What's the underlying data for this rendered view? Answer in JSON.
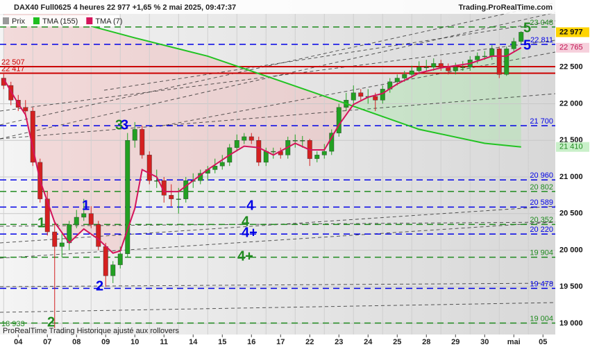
{
  "header": {
    "title": "DAX40 Full0625 4 heures 22 977 +1,65 % 2 mai 2025, 09:47:37",
    "site": "Trading.ProRealTime.com",
    "footer": "ProRealTime Trading Historique ajusté aux rollovers"
  },
  "chart_data": {
    "type": "candlestick",
    "legend": [
      {
        "name": "Prix",
        "color": "#9a9a9a"
      },
      {
        "name": "TMA (155)",
        "color": "#1fbf1f"
      },
      {
        "name": "TMA (7)",
        "color": "#d4145a"
      }
    ],
    "up_color": "#22a022",
    "down_color": "#d42020",
    "candles": [
      [
        22350,
        22420,
        22200,
        22250
      ],
      [
        22250,
        22300,
        21980,
        22050
      ],
      [
        22050,
        22120,
        21900,
        21950
      ],
      [
        21950,
        22050,
        21850,
        21900
      ],
      [
        21900,
        21950,
        21150,
        21200
      ],
      [
        21200,
        21250,
        20650,
        20700
      ],
      [
        20700,
        20800,
        20200,
        20250
      ],
      [
        20250,
        20400,
        18933,
        20050
      ],
      [
        20050,
        20250,
        19900,
        20100
      ],
      [
        20100,
        20400,
        20000,
        20350
      ],
      [
        20350,
        20550,
        20300,
        20450
      ],
      [
        20450,
        20700,
        20400,
        20500
      ],
      [
        20500,
        20600,
        20300,
        20350
      ],
      [
        20350,
        20400,
        20000,
        20050
      ],
      [
        20050,
        20100,
        19500,
        19650
      ],
      [
        19650,
        19850,
        19550,
        19800
      ],
      [
        19800,
        20050,
        19750,
        19950
      ],
      [
        19950,
        21600,
        19900,
        21500
      ],
      [
        21500,
        21750,
        21400,
        21650
      ],
      [
        21650,
        21700,
        21250,
        21300
      ],
      [
        21300,
        21350,
        20900,
        20950
      ],
      [
        20950,
        21100,
        20850,
        20950
      ],
      [
        20950,
        21000,
        20650,
        20750
      ],
      [
        20750,
        20900,
        20600,
        20700
      ],
      [
        20700,
        20850,
        20500,
        20700
      ],
      [
        20700,
        21000,
        20650,
        20950
      ],
      [
        20950,
        21050,
        20850,
        20950
      ],
      [
        20950,
        21100,
        20900,
        21050
      ],
      [
        21050,
        21150,
        20950,
        21100
      ],
      [
        21100,
        21250,
        21050,
        21150
      ],
      [
        21150,
        21300,
        21100,
        21200
      ],
      [
        21200,
        21450,
        21150,
        21400
      ],
      [
        21400,
        21580,
        21350,
        21500
      ],
      [
        21500,
        21600,
        21450,
        21550
      ],
      [
        21550,
        21600,
        21450,
        21500
      ],
      [
        21500,
        21550,
        21150,
        21200
      ],
      [
        21200,
        21400,
        21150,
        21350
      ],
      [
        21350,
        21400,
        21250,
        21350
      ],
      [
        21350,
        21400,
        21250,
        21300
      ],
      [
        21300,
        21550,
        21250,
        21500
      ],
      [
        21500,
        21580,
        21400,
        21500
      ],
      [
        21500,
        21560,
        21400,
        21500
      ],
      [
        21500,
        21520,
        21150,
        21250
      ],
      [
        21250,
        21350,
        21200,
        21300
      ],
      [
        21300,
        21450,
        21250,
        21350
      ],
      [
        21350,
        21650,
        21300,
        21600
      ],
      [
        21600,
        22000,
        21550,
        21950
      ],
      [
        21950,
        22150,
        21900,
        22050
      ],
      [
        22050,
        22250,
        22000,
        22150
      ],
      [
        22150,
        22200,
        22050,
        22100
      ],
      [
        22100,
        22200,
        22000,
        22100
      ],
      [
        22100,
        22150,
        21900,
        22050
      ],
      [
        22050,
        22250,
        22000,
        22200
      ],
      [
        22200,
        22350,
        22150,
        22300
      ],
      [
        22300,
        22400,
        22250,
        22350
      ],
      [
        22350,
        22450,
        22300,
        22400
      ],
      [
        22400,
        22520,
        22350,
        22450
      ],
      [
        22450,
        22580,
        22400,
        22500
      ],
      [
        22500,
        22600,
        22450,
        22500
      ],
      [
        22500,
        22620,
        22450,
        22550
      ],
      [
        22550,
        22600,
        22450,
        22500
      ],
      [
        22500,
        22550,
        22400,
        22450
      ],
      [
        22450,
        22560,
        22400,
        22500
      ],
      [
        22500,
        22580,
        22450,
        22500
      ],
      [
        22500,
        22650,
        22450,
        22600
      ],
      [
        22600,
        22700,
        22550,
        22650
      ],
      [
        22650,
        22720,
        22600,
        22650
      ],
      [
        22650,
        22800,
        22600,
        22750
      ],
      [
        22750,
        22780,
        22350,
        22400
      ],
      [
        22400,
        22780,
        22380,
        22750
      ],
      [
        22750,
        22900,
        22700,
        22850
      ],
      [
        22850,
        22990,
        22820,
        22977
      ]
    ],
    "series": [
      {
        "name": "TMA (155)",
        "color": "#22c322",
        "x": [
          12,
          18,
          28,
          38,
          47,
          57,
          66,
          71
        ],
        "values": [
          23060,
          22900,
          22650,
          22310,
          22000,
          21650,
          21460,
          21410
        ],
        "last_label": "21 410"
      },
      {
        "name": "TMA (7)",
        "color": "#d4145a",
        "x": [
          0,
          2,
          3,
          5,
          7,
          9,
          11,
          13,
          15,
          16,
          18,
          19,
          21,
          22,
          24,
          26,
          28,
          31,
          33,
          35,
          37,
          40,
          42,
          44,
          46,
          48,
          50,
          52,
          54,
          57,
          60,
          64,
          67,
          69,
          71
        ],
        "values": [
          22340,
          22000,
          21850,
          20950,
          20380,
          20100,
          20290,
          20150,
          19960,
          19990,
          20570,
          21100,
          21000,
          20800,
          20800,
          20950,
          21100,
          21300,
          21420,
          21400,
          21300,
          21460,
          21370,
          21370,
          21710,
          21990,
          22090,
          22140,
          22270,
          22420,
          22490,
          22550,
          22650,
          22650,
          22765
        ],
        "last_label": "22 765"
      }
    ],
    "price_tag": {
      "value": 22977,
      "label": "22 977"
    },
    "levels": [
      {
        "value": 23048,
        "label": "23 048",
        "color": "#1f8a1f",
        "style": "dashed",
        "side": "right"
      },
      {
        "value": 22811,
        "label": "22 811",
        "color": "#0000e6",
        "style": "dashed",
        "side": "right"
      },
      {
        "value": 22507,
        "label": "22 507",
        "color": "#cc0000",
        "style": "solid",
        "side": "left"
      },
      {
        "value": 22417,
        "label": "22 417",
        "color": "#cc0000",
        "style": "solid",
        "side": "left"
      },
      {
        "value": 21700,
        "label": "21 700",
        "color": "#0000e6",
        "style": "dashed",
        "side": "right"
      },
      {
        "value": 20960,
        "label": "20 960",
        "color": "#0000e6",
        "style": "dashed",
        "side": "right"
      },
      {
        "value": 20802,
        "label": "20 802",
        "color": "#1f8a1f",
        "style": "dashed",
        "side": "right"
      },
      {
        "value": 20589,
        "label": "20 589",
        "color": "#0000e6",
        "style": "dashed",
        "side": "right"
      },
      {
        "value": 20352,
        "label": "20 352",
        "color": "#1f8a1f",
        "style": "dashed",
        "side": "right"
      },
      {
        "value": 20220,
        "label": "20 220",
        "color": "#0000e6",
        "style": "dashed",
        "side": "right"
      },
      {
        "value": 19904,
        "label": "19 904",
        "color": "#1f8a1f",
        "style": "dashed",
        "side": "right"
      },
      {
        "value": 19478,
        "label": "19 478",
        "color": "#0000e6",
        "style": "dashed",
        "side": "right"
      },
      {
        "value": 19004,
        "label": "19 004",
        "color": "#1f8a1f",
        "style": "dashed",
        "side": "right"
      },
      {
        "value": 18933,
        "label": "18 933",
        "color": "#1f8a1f",
        "style": "none",
        "side": "left"
      }
    ],
    "annotations": [
      "1",
      "2",
      "3",
      "3",
      "1",
      "2",
      "4",
      "4",
      "4+",
      "4+",
      "5",
      "5"
    ],
    "xlim": [
      -0.5,
      75.69
    ],
    "xticks": [
      {
        "value": 2,
        "label": "04"
      },
      {
        "value": 6,
        "label": "07"
      },
      {
        "value": 10,
        "label": "08"
      },
      {
        "value": 14,
        "label": "09"
      },
      {
        "value": 18,
        "label": "10"
      },
      {
        "value": 22,
        "label": "11"
      },
      {
        "value": 26,
        "label": "14"
      },
      {
        "value": 30,
        "label": "15"
      },
      {
        "value": 34,
        "label": "16"
      },
      {
        "value": 38,
        "label": "17"
      },
      {
        "value": 42,
        "label": "22"
      },
      {
        "value": 46,
        "label": "23"
      },
      {
        "value": 50,
        "label": "24"
      },
      {
        "value": 54,
        "label": "25"
      },
      {
        "value": 58,
        "label": "28"
      },
      {
        "value": 62,
        "label": "29"
      },
      {
        "value": 66,
        "label": "30"
      },
      {
        "value": 70,
        "label": "mai"
      },
      {
        "value": 74,
        "label": "05"
      }
    ],
    "ylim": [
      18848,
      23417
    ],
    "yticks": [
      {
        "value": 19000,
        "label": "19 000"
      },
      {
        "value": 19500,
        "label": "19 500"
      },
      {
        "value": 20000,
        "label": "20 000"
      },
      {
        "value": 20500,
        "label": "20 500"
      },
      {
        "value": 21000,
        "label": "21 000"
      },
      {
        "value": 21500,
        "label": "21 500"
      },
      {
        "value": 22000,
        "label": "22 000"
      },
      {
        "value": 22500,
        "label": "22 500"
      }
    ],
    "grid": true
  }
}
